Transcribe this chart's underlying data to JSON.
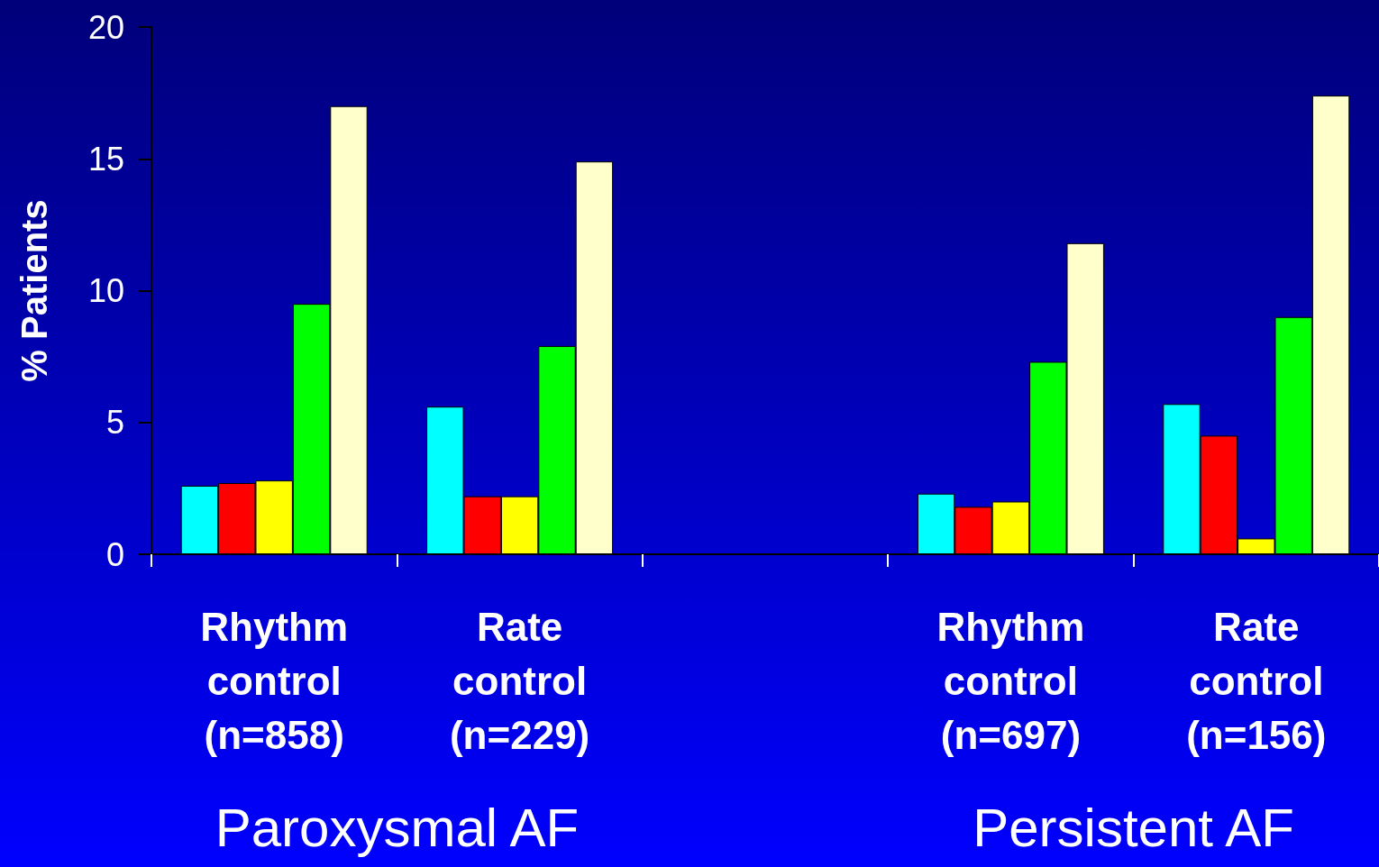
{
  "chart_data": {
    "type": "bar",
    "ylabel": "% Patients",
    "categories": [
      "Rhythm\ncontrol\n(n=858)",
      "Rate\ncontrol\n(n=229)",
      null,
      "Rhythm\ncontrol\n(n=697)",
      "Rate\ncontrol\n(n=156)"
    ],
    "series": [
      {
        "color": "#00ffff",
        "values": [
          2.6,
          5.6,
          null,
          2.3,
          5.7
        ]
      },
      {
        "color": "#ff0000",
        "values": [
          2.7,
          2.2,
          null,
          1.8,
          4.5
        ]
      },
      {
        "color": "#ffff00",
        "values": [
          2.8,
          2.2,
          null,
          2.0,
          0.6
        ]
      },
      {
        "color": "#00ff00",
        "values": [
          9.5,
          7.9,
          null,
          7.3,
          9.0
        ]
      },
      {
        "color": "#ffffcc",
        "values": [
          17.0,
          14.9,
          null,
          11.8,
          17.4
        ]
      }
    ],
    "ylim": [
      0,
      20
    ],
    "yticks": [
      0,
      5,
      10,
      15,
      20
    ],
    "grid": false,
    "annotations": [
      "Paroxysmal AF",
      "Persistent AF"
    ]
  }
}
